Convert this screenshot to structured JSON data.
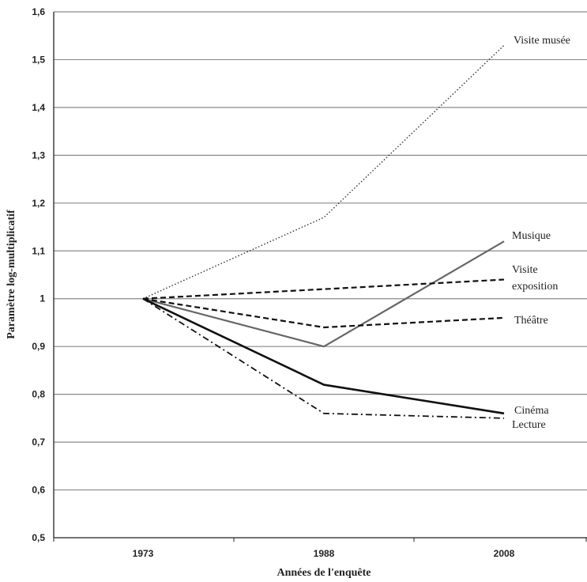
{
  "chart_data": {
    "type": "line",
    "categories": [
      "1973",
      "1988",
      "2008"
    ],
    "xlabel": "Années de l'enquête",
    "ylabel": "Paramètre log-multiplicatif",
    "ylim": [
      0.5,
      1.6
    ],
    "y_ticks": [
      "0,5",
      "0,6",
      "0,7",
      "0,8",
      "0,9",
      "1",
      "1,1",
      "1,2",
      "1,3",
      "1,4",
      "1,5",
      "1,6"
    ],
    "grid": true,
    "legend": "labels at line ends (right)",
    "series": [
      {
        "name": "Visite musée",
        "values": [
          1.0,
          1.17,
          1.53
        ],
        "style": "dotted",
        "color": "#333333"
      },
      {
        "name": "Musique",
        "values": [
          1.0,
          0.9,
          1.12
        ],
        "style": "solid",
        "color": "#666666"
      },
      {
        "name": "Visite exposition",
        "label_lines": [
          "Visite",
          "exposition"
        ],
        "values": [
          1.0,
          1.02,
          1.04
        ],
        "style": "dashed",
        "color": "#111111"
      },
      {
        "name": "Théâtre",
        "values": [
          1.0,
          0.94,
          0.96
        ],
        "style": "dashed",
        "color": "#111111"
      },
      {
        "name": "Cinéma",
        "values": [
          1.0,
          0.82,
          0.76
        ],
        "style": "solid-thick",
        "color": "#111111"
      },
      {
        "name": "Lecture",
        "values": [
          1.0,
          0.76,
          0.75
        ],
        "style": "dashdot",
        "color": "#111111"
      }
    ]
  }
}
